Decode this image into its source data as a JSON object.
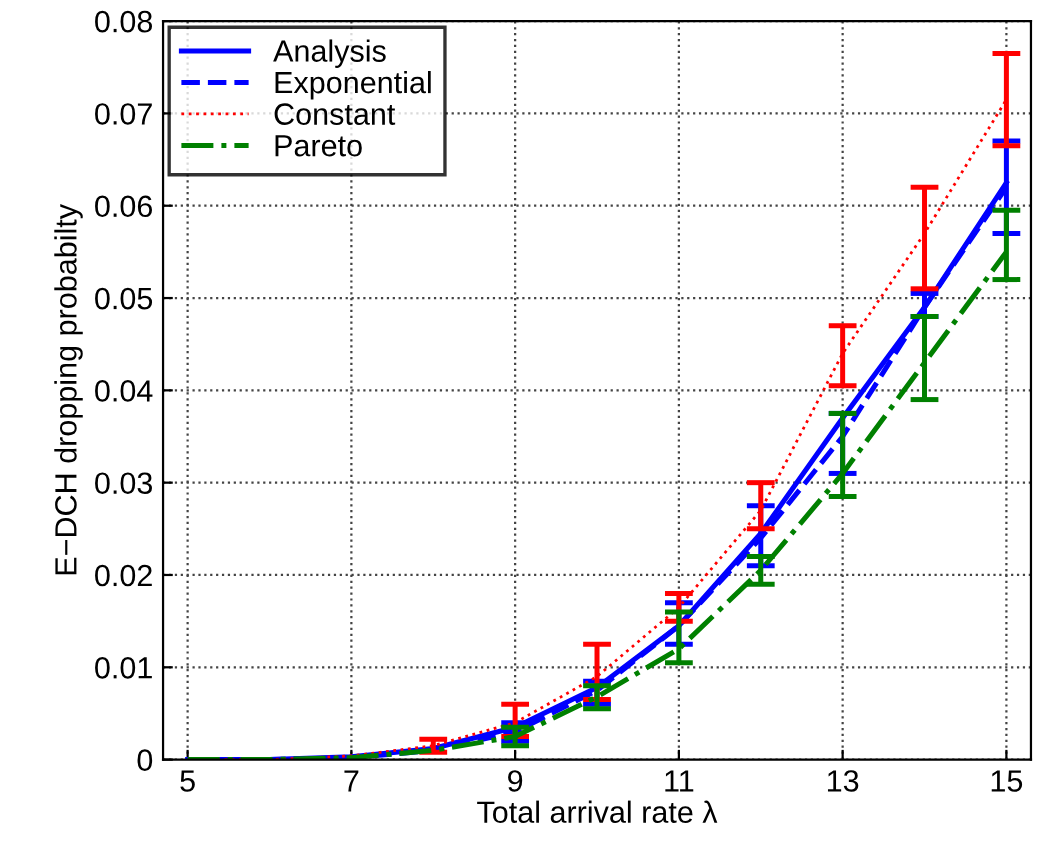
{
  "chart_data": {
    "type": "line",
    "xlabel": "Total arrival rate λ",
    "ylabel": "E−DCH dropping probabilty",
    "x": [
      5,
      6,
      7,
      8,
      9,
      10,
      11,
      12,
      13,
      14,
      15
    ],
    "series": [
      {
        "name": "Analysis",
        "color": "#0000ff",
        "line_style": "solid",
        "values": [
          0,
          0,
          0.0003,
          0.0012,
          0.0035,
          0.0078,
          0.0145,
          0.0245,
          0.037,
          0.049,
          0.0625
        ]
      },
      {
        "name": "Exponential",
        "color": "#0000ff",
        "line_style": "dashed",
        "values": [
          0,
          0,
          0.0002,
          0.001,
          0.003,
          0.0075,
          0.0145,
          0.024,
          0.035,
          0.049,
          0.062
        ],
        "errors": [
          null,
          null,
          null,
          null,
          [
            0.002,
            0.004
          ],
          [
            0.006,
            0.0085
          ],
          [
            0.0125,
            0.017
          ],
          [
            0.021,
            0.0275
          ],
          [
            0.031,
            0.0375
          ],
          [
            0.048,
            0.0505
          ],
          [
            0.057,
            0.067
          ]
        ]
      },
      {
        "name": "Constant",
        "color": "#ff0000",
        "line_style": "dotted",
        "values": [
          0,
          0,
          0.0004,
          0.0015,
          0.004,
          0.009,
          0.0165,
          0.027,
          0.044,
          0.057,
          0.0715
        ],
        "errors": [
          null,
          null,
          null,
          [
            0.0008,
            0.0022
          ],
          [
            0.0025,
            0.006
          ],
          [
            0.0065,
            0.0125
          ],
          [
            0.015,
            0.018
          ],
          [
            0.025,
            0.03
          ],
          [
            0.0405,
            0.047
          ],
          [
            0.051,
            0.062
          ],
          [
            0.0665,
            0.0765
          ]
        ]
      },
      {
        "name": "Pareto",
        "color": "#008000",
        "line_style": "dashdot",
        "values": [
          0,
          0,
          0.0002,
          0.001,
          0.0025,
          0.0068,
          0.012,
          0.0205,
          0.031,
          0.043,
          0.055
        ],
        "errors": [
          null,
          null,
          null,
          null,
          [
            0.0015,
            0.0035
          ],
          [
            0.0055,
            0.008
          ],
          [
            0.0105,
            0.016
          ],
          [
            0.019,
            0.022
          ],
          [
            0.0285,
            0.0375
          ],
          [
            0.039,
            0.048
          ],
          [
            0.052,
            0.0595
          ]
        ]
      }
    ],
    "xlim": [
      4.7,
      15.3
    ],
    "xticks": [
      5,
      7,
      9,
      11,
      13,
      15
    ],
    "ylim": [
      0,
      0.08
    ],
    "yticks": [
      0,
      0.01,
      0.02,
      0.03,
      0.04,
      0.05,
      0.06,
      0.07,
      0.08
    ],
    "grid": true,
    "legend": "top left"
  }
}
